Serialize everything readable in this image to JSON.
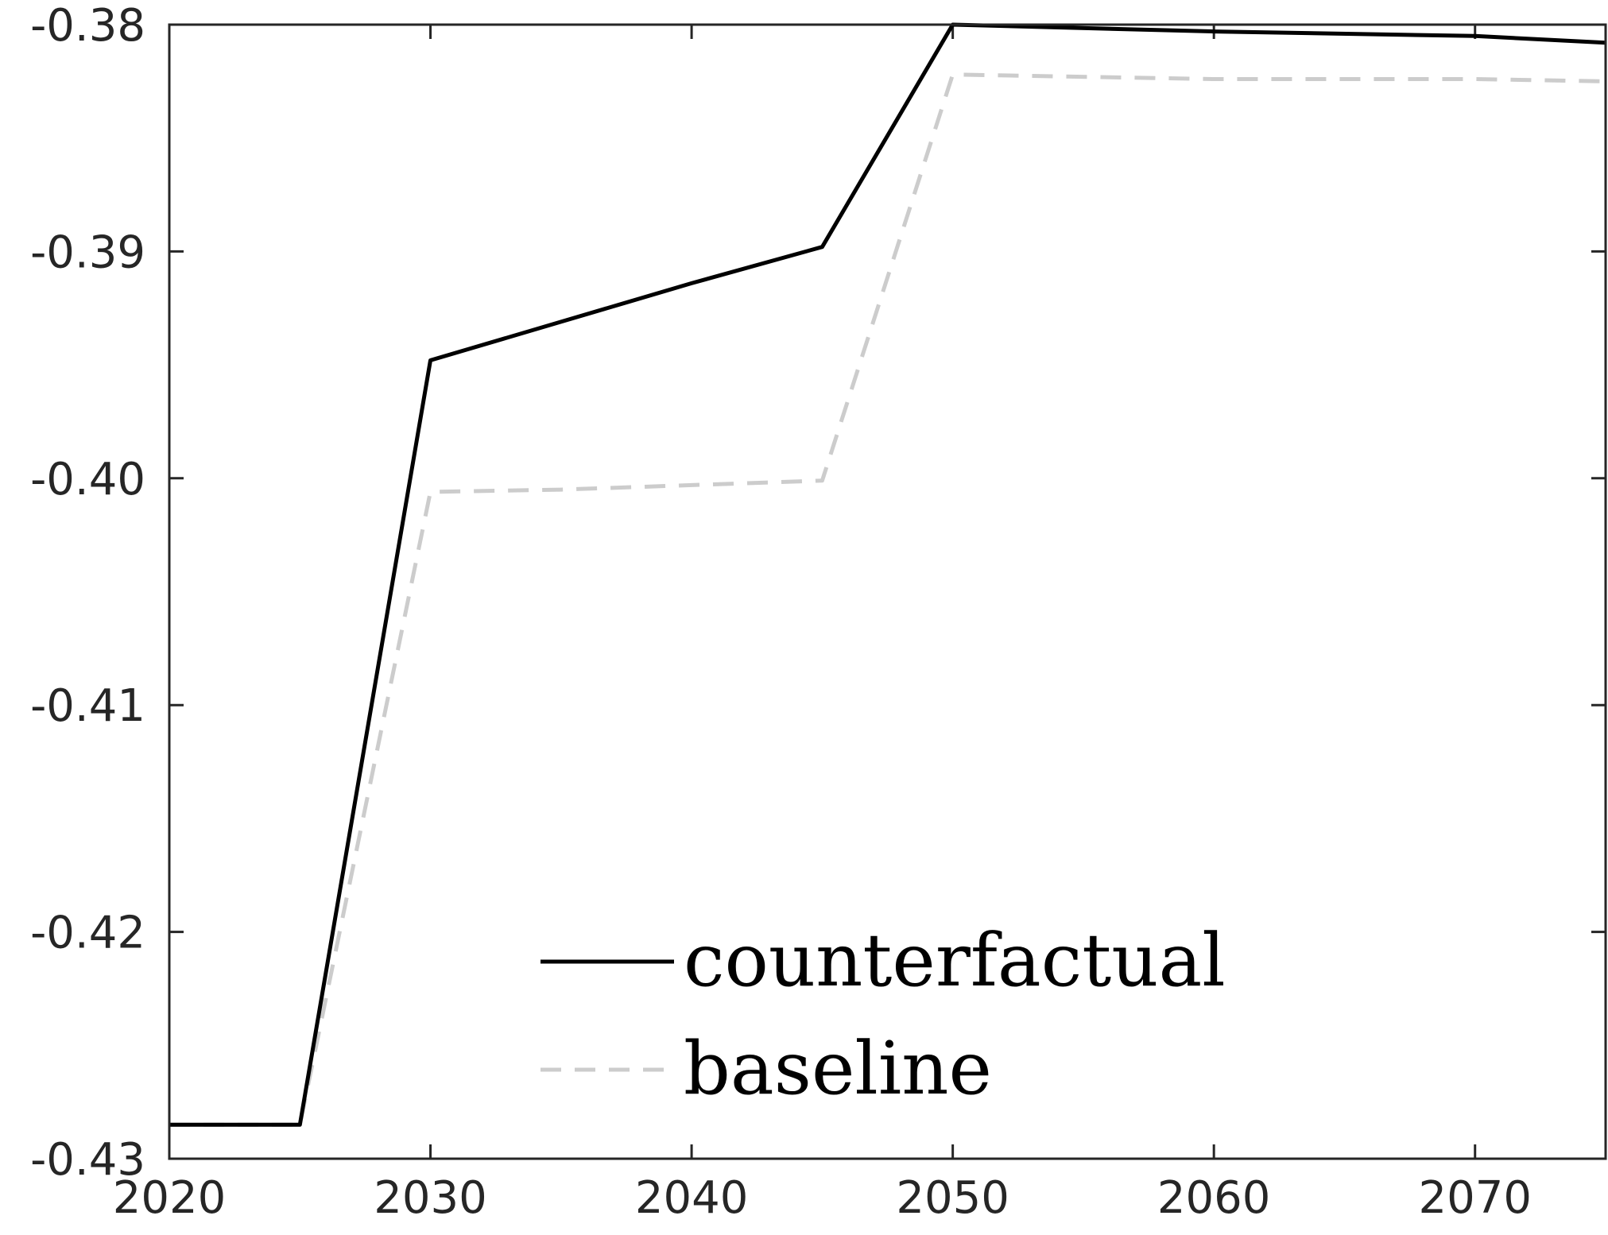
{
  "chart_data": {
    "type": "line",
    "title": "",
    "xlabel": "",
    "ylabel": "",
    "xlim": [
      2020,
      2075
    ],
    "ylim": [
      -0.43,
      -0.38
    ],
    "x_ticks": [
      2020,
      2030,
      2040,
      2050,
      2060,
      2070
    ],
    "x_tick_labels": [
      "2020",
      "2030",
      "2040",
      "2050",
      "2060",
      "2070"
    ],
    "y_ticks": [
      -0.38,
      -0.39,
      -0.4,
      -0.41,
      -0.42,
      -0.43
    ],
    "y_tick_labels": [
      "-0.38",
      "-0.39",
      "-0.40",
      "-0.41",
      "-0.42",
      "-0.43"
    ],
    "grid": false,
    "legend_position": "bottom-center",
    "series": [
      {
        "name": "counterfactual",
        "color": "#000000",
        "style": "solid",
        "x": [
          2020,
          2025,
          2030,
          2035,
          2040,
          2045,
          2050,
          2060,
          2070,
          2075
        ],
        "y": [
          -0.4285,
          -0.4285,
          -0.3948,
          -0.3931,
          -0.3914,
          -0.3898,
          -0.38,
          -0.3803,
          -0.3805,
          -0.3808
        ]
      },
      {
        "name": "baseline",
        "color": "#cccccc",
        "style": "dashed",
        "x": [
          2020,
          2025,
          2030,
          2035,
          2040,
          2045,
          2050,
          2060,
          2070,
          2075
        ],
        "y": [
          -0.4285,
          -0.4285,
          -0.4006,
          -0.4005,
          -0.4003,
          -0.4001,
          -0.3822,
          -0.3824,
          -0.3824,
          -0.3825
        ]
      }
    ]
  }
}
